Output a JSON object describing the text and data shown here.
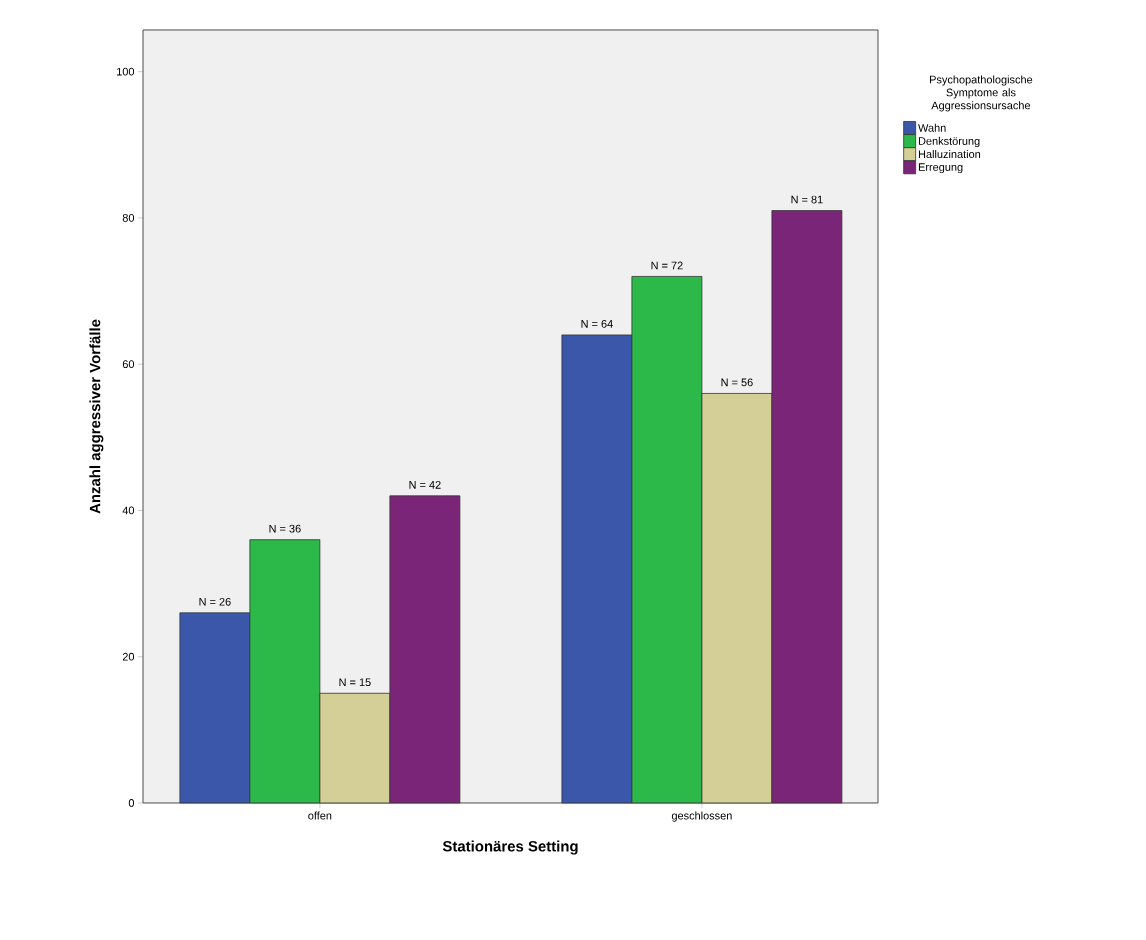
{
  "chart_data": {
    "type": "bar",
    "xlabel": "Stationäres Setting",
    "ylabel": "Anzahl aggressiver Vorfälle",
    "legend_title": "Psychopathologische Symptome als Aggressionsursache",
    "categories": [
      "offen",
      "geschlossen"
    ],
    "series": [
      {
        "name": "Wahn",
        "color": "#3b57aa",
        "values": [
          26,
          64
        ],
        "value_labels": [
          "N = 26",
          "N = 64"
        ]
      },
      {
        "name": "Denkstörung",
        "color": "#2db84a",
        "values": [
          36,
          72
        ],
        "value_labels": [
          "N = 36",
          "N = 72"
        ]
      },
      {
        "name": "Halluzination",
        "color": "#d4cf96",
        "values": [
          15,
          56
        ],
        "value_labels": [
          "N = 15",
          "N = 56"
        ]
      },
      {
        "name": "Erregung",
        "color": "#7a2577",
        "values": [
          42,
          81
        ],
        "value_labels": [
          "N = 42",
          "N = 81"
        ]
      }
    ],
    "ylim": [
      0,
      105.7
    ],
    "yticks": [
      0,
      20,
      40,
      60,
      80,
      100
    ],
    "grid": false,
    "legend": "top right"
  }
}
